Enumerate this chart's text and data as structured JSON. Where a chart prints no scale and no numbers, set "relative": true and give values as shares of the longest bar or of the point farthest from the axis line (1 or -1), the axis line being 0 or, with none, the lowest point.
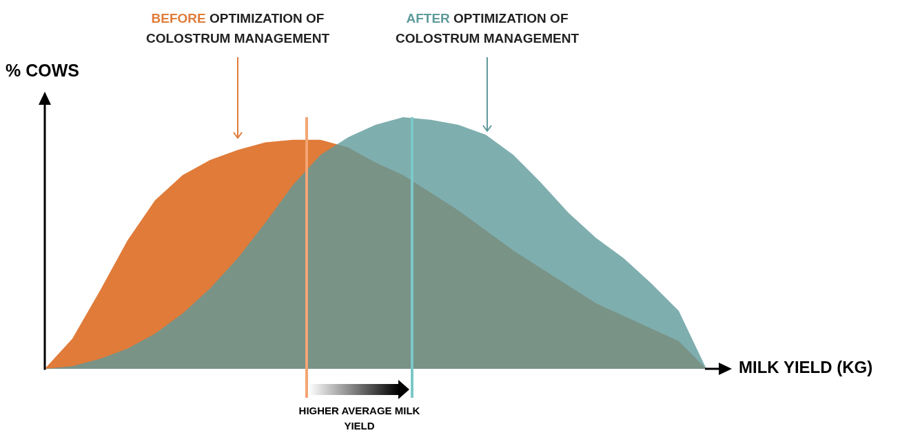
{
  "chart_data": {
    "type": "area",
    "relative": true,
    "ylabel": "% COWS",
    "xlabel": "MILK YIELD (KG)",
    "categories": [
      null,
      null,
      null,
      null,
      null,
      null,
      null,
      null,
      null,
      null,
      null,
      null,
      null,
      null,
      null,
      null,
      null,
      null,
      null,
      null,
      null,
      null,
      null,
      null,
      null
    ],
    "series": [
      {
        "name": "BEFORE OPTIMIZATION OF COLOSTRUM MANAGEMENT",
        "color": "#e07b39",
        "values": [
          0,
          0.12,
          0.31,
          0.51,
          0.67,
          0.77,
          0.83,
          0.87,
          0.9,
          0.91,
          0.91,
          0.88,
          0.82,
          0.77,
          0.7,
          0.63,
          0.55,
          0.47,
          0.4,
          0.33,
          0.26,
          0.21,
          0.16,
          0.11,
          0
        ]
      },
      {
        "name": "AFTER OPTIMIZATION OF COLOSTRUM MANAGEMENT",
        "color": "#5f9a9b",
        "values": [
          0,
          0.01,
          0.04,
          0.08,
          0.14,
          0.22,
          0.32,
          0.44,
          0.58,
          0.73,
          0.85,
          0.92,
          0.97,
          1,
          0.99,
          0.97,
          0.93,
          0.85,
          0.74,
          0.62,
          0.52,
          0.44,
          0.34,
          0.23,
          0
        ]
      }
    ],
    "annotations": [
      "HIGHER AVERAGE MILK YIELD"
    ]
  }
}
